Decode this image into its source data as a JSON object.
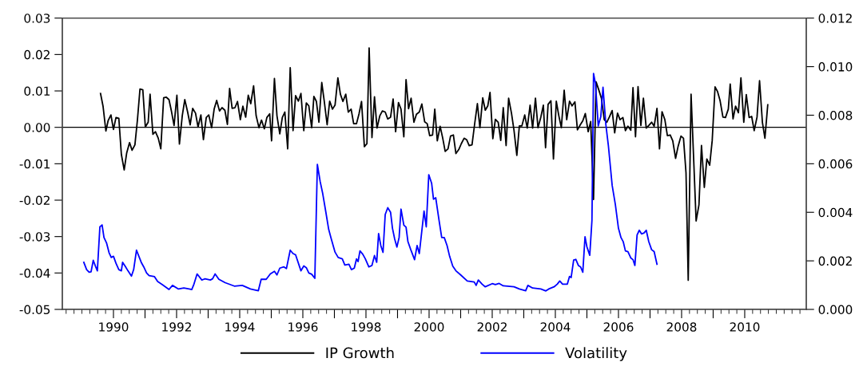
{
  "chart_data": {
    "type": "line",
    "xlim": [
      1988.38,
      2011.95
    ],
    "xticks": [
      {
        "value": 1990,
        "label": "1990"
      },
      {
        "value": 1991,
        "label": null
      },
      {
        "value": 1992,
        "label": "1992"
      },
      {
        "value": 1993,
        "label": null
      },
      {
        "value": 1994,
        "label": "1994"
      },
      {
        "value": 1995,
        "label": null
      },
      {
        "value": 1996,
        "label": "1996"
      },
      {
        "value": 1997,
        "label": null
      },
      {
        "value": 1998,
        "label": "1998"
      },
      {
        "value": 1999,
        "label": null
      },
      {
        "value": 2000,
        "label": "2000"
      },
      {
        "value": 2001,
        "label": null
      },
      {
        "value": 2002,
        "label": "2002"
      },
      {
        "value": 2003,
        "label": null
      },
      {
        "value": 2004,
        "label": "2004"
      },
      {
        "value": 2005,
        "label": null
      },
      {
        "value": 2006,
        "label": "2006"
      },
      {
        "value": 2007,
        "label": null
      },
      {
        "value": 2008,
        "label": "2008"
      },
      {
        "value": 2009,
        "label": null
      },
      {
        "value": 2010,
        "label": "2010"
      }
    ],
    "ylim": [
      -0.05,
      0.03
    ],
    "yticks": [
      {
        "value": -0.05,
        "label": "-0.05"
      },
      {
        "value": -0.04,
        "label": "-0.04"
      },
      {
        "value": -0.03,
        "label": "-0.03"
      },
      {
        "value": -0.02,
        "label": "-0.02"
      },
      {
        "value": -0.01,
        "label": "-0.01"
      },
      {
        "value": 0,
        "label": "0.00"
      },
      {
        "value": 0.01,
        "label": "0.01"
      },
      {
        "value": 0.02,
        "label": "0.02"
      },
      {
        "value": 0.03,
        "label": "0.03"
      }
    ],
    "y2lim": [
      0,
      0.012
    ],
    "y2ticks": [
      {
        "value": 0,
        "label": "0.000"
      },
      {
        "value": 0.002,
        "label": "0.002"
      },
      {
        "value": 0.004,
        "label": "0.004"
      },
      {
        "value": 0.006,
        "label": "0.006"
      },
      {
        "value": 0.008,
        "label": "0.008"
      },
      {
        "value": 0.01,
        "label": "0.010"
      },
      {
        "value": 0.012,
        "label": "0.012"
      }
    ],
    "ref_lines": [
      {
        "axis": "y",
        "value": 0,
        "color": "#000000",
        "line_style": "solid"
      }
    ],
    "grid": false,
    "legend": "bottom",
    "series": [
      {
        "name": "IP Growth",
        "color": "#000000",
        "axis": "y",
        "x": [
          1989.59,
          1989.67,
          1989.76,
          1989.83,
          1989.92,
          1990.0,
          1990.08,
          1990.17,
          1990.25,
          1990.34,
          1990.42,
          1990.51,
          1990.59,
          1990.68,
          1990.76,
          1990.84,
          1990.93,
          1991.01,
          1991.1,
          1991.16,
          1991.25,
          1991.33,
          1991.42,
          1991.5,
          1991.59,
          1991.67,
          1991.76,
          1991.84,
          1991.92,
          1992.01,
          1992.09,
          1992.18,
          1992.26,
          1992.35,
          1992.43,
          1992.51,
          1992.6,
          1992.68,
          1992.77,
          1992.85,
          1992.94,
          1993.02,
          1993.11,
          1993.19,
          1993.27,
          1993.36,
          1993.44,
          1993.53,
          1993.61,
          1993.68,
          1993.76,
          1993.85,
          1993.93,
          1994.02,
          1994.1,
          1994.19,
          1994.27,
          1994.35,
          1994.44,
          1994.52,
          1994.61,
          1994.69,
          1994.78,
          1994.86,
          1994.95,
          1995.01,
          1995.1,
          1995.18,
          1995.27,
          1995.35,
          1995.43,
          1995.52,
          1995.6,
          1995.69,
          1995.77,
          1995.86,
          1995.94,
          1996.03,
          1996.11,
          1996.19,
          1996.28,
          1996.35,
          1996.43,
          1996.51,
          1996.6,
          1996.68,
          1996.77,
          1996.85,
          1996.94,
          1997.02,
          1997.11,
          1997.19,
          1997.27,
          1997.36,
          1997.44,
          1997.53,
          1997.61,
          1997.7,
          1997.78,
          1997.86,
          1997.95,
          1998.03,
          1998.1,
          1998.19,
          1998.27,
          1998.35,
          1998.44,
          1998.52,
          1998.61,
          1998.69,
          1998.78,
          1998.86,
          1998.94,
          1999.03,
          1999.11,
          1999.2,
          1999.27,
          1999.35,
          1999.43,
          1999.52,
          1999.6,
          1999.69,
          1999.77,
          1999.86,
          1999.94,
          2000.02,
          2000.11,
          2000.18,
          2000.26,
          2000.35,
          2000.43,
          2000.51,
          2000.6,
          2000.68,
          2000.77,
          2000.85,
          2000.94,
          2001.02,
          2001.11,
          2001.19,
          2001.27,
          2001.36,
          2001.44,
          2001.53,
          2001.61,
          2001.7,
          2001.78,
          2001.86,
          2001.93,
          2002.02,
          2002.1,
          2002.19,
          2002.27,
          2002.35,
          2002.44,
          2002.52,
          2002.61,
          2002.69,
          2002.78,
          2002.86,
          2002.94,
          2003.03,
          2003.11,
          2003.2,
          2003.28,
          2003.37,
          2003.45,
          2003.54,
          2003.62,
          2003.69,
          2003.77,
          2003.86,
          2003.94,
          2004.03,
          2004.11,
          2004.19,
          2004.28,
          2004.36,
          2004.45,
          2004.53,
          2004.62,
          2004.7,
          2004.79,
          2004.87,
          2004.95,
          2005.04,
          2005.12,
          2005.21,
          2005.29,
          2005.38,
          2005.46,
          2005.55,
          2005.63,
          2005.71,
          2005.8,
          2005.88,
          2005.97,
          2006.05,
          2006.14,
          2006.22,
          2006.3,
          2006.39,
          2006.46,
          2006.54,
          2006.62,
          2006.71,
          2006.79,
          2006.88,
          2006.96,
          2007.05,
          2007.13,
          2007.22,
          2007.3,
          2007.38,
          2007.47,
          2007.55,
          2007.64,
          2007.72,
          2007.81,
          2007.89,
          2007.98,
          2008.06,
          2008.14,
          2008.21,
          2008.3,
          2008.38,
          2008.46,
          2008.55,
          2008.63,
          2008.72,
          2008.8,
          2008.89,
          2008.97,
          2009.06,
          2009.14,
          2009.22,
          2009.31,
          2009.39,
          2009.48,
          2009.54,
          2009.63,
          2009.71,
          2009.8,
          2009.88,
          2009.97,
          2010.05,
          2010.14,
          2010.22,
          2010.3,
          2010.39,
          2010.47,
          2010.56,
          2010.64,
          2010.73
        ],
        "values": [
          0.0093,
          0.0058,
          -0.001,
          0.0018,
          0.0034,
          -0.0006,
          0.0027,
          0.0025,
          -0.0074,
          -0.0117,
          -0.007,
          -0.0042,
          -0.0063,
          -0.0048,
          0.0021,
          0.0105,
          0.0103,
          0.0001,
          0.0014,
          0.0091,
          -0.0019,
          -0.0012,
          -0.003,
          -0.0059,
          0.0081,
          0.0083,
          0.0076,
          0.0043,
          0.0005,
          0.0088,
          -0.0046,
          0.0032,
          0.0076,
          0.0042,
          0.0007,
          0.0052,
          0.0039,
          0.0001,
          0.0034,
          -0.0034,
          0.0027,
          0.0034,
          -0.0001,
          0.005,
          0.0074,
          0.0045,
          0.0054,
          0.0047,
          0.0008,
          0.0107,
          0.0052,
          0.0054,
          0.0071,
          0.0021,
          0.0058,
          0.0028,
          0.0088,
          0.0065,
          0.0114,
          0.0032,
          -0.0001,
          0.002,
          -0.0004,
          0.0027,
          0.0037,
          -0.0037,
          0.0134,
          0.0032,
          -0.0018,
          0.0027,
          0.0042,
          -0.0059,
          0.0164,
          -0.0009,
          0.0087,
          0.0072,
          0.0093,
          -0.0009,
          0.0067,
          0.0059,
          -0.0001,
          0.0085,
          0.0071,
          0.0014,
          0.0123,
          0.0071,
          0.0007,
          0.0072,
          0.005,
          0.0061,
          0.0136,
          0.0091,
          0.0071,
          0.0091,
          0.0042,
          0.005,
          0.001,
          0.001,
          0.0037,
          0.0071,
          -0.0053,
          -0.0045,
          0.0218,
          -0.0028,
          0.0084,
          -0.0002,
          0.0032,
          0.0045,
          0.0042,
          0.0023,
          0.0028,
          0.0078,
          -0.0012,
          0.0068,
          0.005,
          -0.0026,
          0.0131,
          0.0051,
          0.008,
          0.0014,
          0.0036,
          0.0042,
          0.0064,
          0.0015,
          0.001,
          -0.0023,
          -0.0021,
          0.005,
          -0.0037,
          0.0003,
          -0.0029,
          -0.0066,
          -0.0059,
          -0.0024,
          -0.0021,
          -0.0072,
          -0.0061,
          -0.0045,
          -0.003,
          -0.0034,
          -0.005,
          -0.0048,
          0.0007,
          0.0065,
          -0.0001,
          0.0081,
          0.0047,
          0.0059,
          0.0096,
          -0.0031,
          0.0022,
          0.0014,
          -0.0036,
          0.0054,
          -0.005,
          0.008,
          0.0039,
          -0.0008,
          -0.0077,
          0.0004,
          0.0004,
          0.0034,
          -0.0002,
          0.0061,
          -0.0002,
          0.008,
          -0.0001,
          0.0028,
          0.0061,
          -0.0056,
          0.0063,
          0.0073,
          -0.0087,
          0.0072,
          0.0032,
          -0.0001,
          0.0102,
          0.0021,
          0.0072,
          0.0059,
          0.007,
          -0.0007,
          0.0007,
          0.0018,
          0.0038,
          -0.0012,
          0.0016,
          -0.0198,
          0.0125,
          0.0102,
          0.008,
          0.0021,
          0.0014,
          0.0028,
          0.0046,
          -0.0015,
          0.0039,
          0.0021,
          0.0027,
          -0.0009,
          0.0003,
          -0.0008,
          0.0109,
          -0.0026,
          0.0112,
          0.0005,
          0.008,
          -0.0002,
          0.0005,
          0.0014,
          0.0003,
          0.0052,
          -0.0059,
          0.0043,
          0.0021,
          -0.0023,
          -0.0021,
          -0.0037,
          -0.0085,
          -0.0052,
          -0.0024,
          -0.003,
          -0.0125,
          -0.042,
          0.0091,
          -0.0082,
          -0.0257,
          -0.0213,
          -0.005,
          -0.0165,
          -0.0087,
          -0.0104,
          -0.0036,
          0.0111,
          0.0098,
          0.0073,
          0.0028,
          0.0027,
          0.005,
          0.0119,
          0.0023,
          0.0058,
          0.004,
          0.0136,
          0.0014,
          0.009,
          0.0027,
          0.003,
          -0.0009,
          0.0028,
          0.0128,
          0.0014,
          -0.003,
          0.0062
        ]
      },
      {
        "name": "Volatility",
        "color": "#0000ff",
        "axis": "y2",
        "x": [
          1989.06,
          1989.15,
          1989.23,
          1989.29,
          1989.36,
          1989.43,
          1989.49,
          1989.57,
          1989.64,
          1989.7,
          1989.78,
          1989.86,
          1989.93,
          1990.0,
          1990.08,
          1990.17,
          1990.25,
          1990.29,
          1990.37,
          1990.46,
          1990.57,
          1990.64,
          1990.73,
          1990.79,
          1990.88,
          1990.96,
          1991.05,
          1991.13,
          1991.3,
          1991.4,
          1991.55,
          1991.76,
          1991.87,
          1992.06,
          1992.23,
          1992.4,
          1992.48,
          1992.55,
          1992.65,
          1992.8,
          1992.9,
          1993.07,
          1993.14,
          1993.22,
          1993.34,
          1993.54,
          1993.83,
          1994.08,
          1994.34,
          1994.59,
          1994.68,
          1994.84,
          1994.97,
          1995.1,
          1995.18,
          1995.27,
          1995.4,
          1995.48,
          1995.6,
          1995.69,
          1995.77,
          1995.94,
          1996.03,
          1996.11,
          1996.19,
          1996.28,
          1996.38,
          1996.46,
          1996.55,
          1996.63,
          1996.73,
          1996.82,
          1996.9,
          1997.02,
          1997.12,
          1997.25,
          1997.33,
          1997.46,
          1997.54,
          1997.63,
          1997.7,
          1997.75,
          1997.81,
          1997.9,
          1997.98,
          1998.09,
          1998.19,
          1998.27,
          1998.34,
          1998.4,
          1998.47,
          1998.54,
          1998.61,
          1998.69,
          1998.78,
          1998.84,
          1998.91,
          1998.98,
          1999.05,
          1999.11,
          1999.2,
          1999.27,
          1999.33,
          1999.42,
          1999.54,
          1999.62,
          1999.69,
          1999.84,
          1999.91,
          1999.99,
          2000.08,
          2000.14,
          2000.21,
          2000.31,
          2000.4,
          2000.48,
          2000.57,
          2000.65,
          2000.75,
          2000.85,
          2001.0,
          2001.21,
          2001.43,
          2001.49,
          2001.56,
          2001.68,
          2001.78,
          2002.0,
          2002.1,
          2002.22,
          2002.35,
          2002.69,
          2002.86,
          2003.06,
          2003.13,
          2003.28,
          2003.54,
          2003.7,
          2003.79,
          2003.96,
          2004.06,
          2004.14,
          2004.23,
          2004.38,
          2004.45,
          2004.5,
          2004.58,
          2004.65,
          2004.73,
          2004.8,
          2004.87,
          2004.94,
          2005.0,
          2005.09,
          2005.16,
          2005.21,
          2005.27,
          2005.36,
          2005.44,
          2005.51,
          2005.6,
          2005.68,
          2005.8,
          2005.9,
          2006.0,
          2006.08,
          2006.15,
          2006.22,
          2006.3,
          2006.39,
          2006.46,
          2006.52,
          2006.59,
          2006.66,
          2006.73,
          2006.81,
          2006.88,
          2006.96,
          2007.05,
          2007.13,
          2007.22
        ],
        "values": [
          0.00194,
          0.00164,
          0.00153,
          0.00155,
          0.00202,
          0.00178,
          0.00159,
          0.0034,
          0.00348,
          0.00296,
          0.00274,
          0.00234,
          0.00214,
          0.00219,
          0.0019,
          0.00164,
          0.00159,
          0.00194,
          0.00178,
          0.00159,
          0.00137,
          0.00164,
          0.00244,
          0.00224,
          0.00194,
          0.00175,
          0.0015,
          0.00139,
          0.00135,
          0.00115,
          0.00102,
          0.00082,
          0.00099,
          0.00084,
          0.00088,
          0.00084,
          0.00082,
          0.00104,
          0.00146,
          0.00121,
          0.00126,
          0.00121,
          0.00126,
          0.00146,
          0.00124,
          0.0011,
          0.00096,
          0.00099,
          0.00084,
          0.00077,
          0.00124,
          0.00124,
          0.00146,
          0.00157,
          0.00142,
          0.0017,
          0.00175,
          0.00168,
          0.00244,
          0.0023,
          0.00225,
          0.00159,
          0.00179,
          0.00172,
          0.0015,
          0.00145,
          0.00128,
          0.00597,
          0.00526,
          0.00477,
          0.004,
          0.00329,
          0.00291,
          0.00236,
          0.00214,
          0.00208,
          0.00183,
          0.00186,
          0.00164,
          0.0017,
          0.00208,
          0.00197,
          0.00241,
          0.00227,
          0.00208,
          0.00175,
          0.00181,
          0.00222,
          0.00194,
          0.00312,
          0.00263,
          0.00235,
          0.00391,
          0.00419,
          0.004,
          0.00334,
          0.0029,
          0.00257,
          0.00296,
          0.00413,
          0.00347,
          0.00339,
          0.00279,
          0.00246,
          0.00205,
          0.00263,
          0.0023,
          0.00405,
          0.0034,
          0.00555,
          0.0052,
          0.00454,
          0.0046,
          0.00372,
          0.00296,
          0.00296,
          0.00263,
          0.00219,
          0.00178,
          0.00159,
          0.00142,
          0.00117,
          0.00113,
          0.00099,
          0.00121,
          0.00104,
          0.00093,
          0.00106,
          0.00102,
          0.00107,
          0.00097,
          0.00093,
          0.00084,
          0.00077,
          0.00099,
          0.00088,
          0.00084,
          0.00076,
          0.00084,
          0.00093,
          0.00104,
          0.00117,
          0.00104,
          0.00104,
          0.00136,
          0.00131,
          0.00203,
          0.00206,
          0.00181,
          0.00175,
          0.00153,
          0.00299,
          0.00258,
          0.00223,
          0.00367,
          0.00972,
          0.00931,
          0.00756,
          0.00794,
          0.00915,
          0.00762,
          0.00675,
          0.00511,
          0.00433,
          0.00334,
          0.00296,
          0.00279,
          0.00241,
          0.00238,
          0.00212,
          0.00205,
          0.00181,
          0.00307,
          0.00326,
          0.00311,
          0.00315,
          0.00326,
          0.00279,
          0.00246,
          0.00238,
          0.00186
        ]
      }
    ]
  }
}
